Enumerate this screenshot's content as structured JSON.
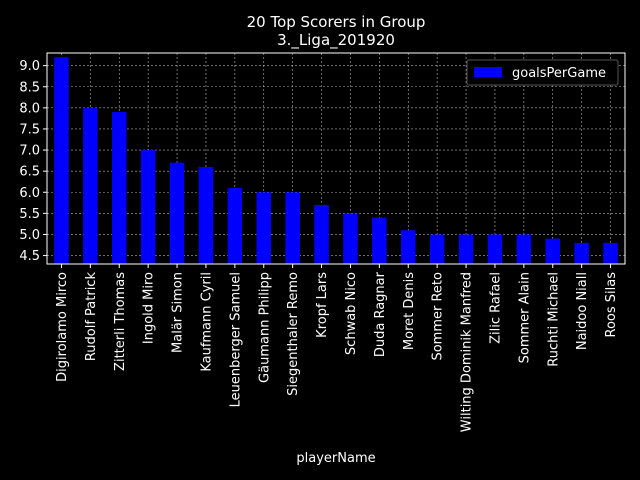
{
  "colors": {
    "background": "#000000",
    "bar": "#0000ff",
    "text": "#ffffff",
    "grid": "#b0b0b0"
  },
  "chart_data": {
    "type": "bar",
    "title_line1": "20 Top Scorers in Group",
    "title_line2": "3._Liga_201920",
    "xlabel": "playerName",
    "ylabel": "",
    "ylim": [
      4.3,
      9.3
    ],
    "yticks": [
      "4.5",
      "5.0",
      "5.5",
      "6.0",
      "6.5",
      "7.0",
      "7.5",
      "8.0",
      "8.5",
      "9.0"
    ],
    "grid": true,
    "legend_position": "top-right",
    "categories": [
      "Digirolamo Mirco",
      "Rudolf Patrick",
      "Zitterli Thomas",
      "Ingold Miro",
      "Malär Simon",
      "Kaufmann Cyril",
      "Leuenberger Samuel",
      "Gäumann Philipp",
      "Siegenthaler Remo",
      "Kropf Lars",
      "Schwab Nico",
      "Duda Ragnar",
      "Moret Denis",
      "Sommer Reto",
      "Wilting Dominik Manfred",
      "Zilic Rafael",
      "Sommer Alain",
      "Ruchti Michael",
      "Naidoo Niall",
      "Roos Silas"
    ],
    "series": [
      {
        "name": "goalsPerGame",
        "values": [
          9.2,
          8.0,
          7.9,
          7.0,
          6.7,
          6.6,
          6.1,
          6.0,
          6.0,
          5.7,
          5.5,
          5.4,
          5.1,
          5.0,
          5.0,
          5.0,
          5.0,
          4.9,
          4.8,
          4.8
        ]
      }
    ]
  }
}
